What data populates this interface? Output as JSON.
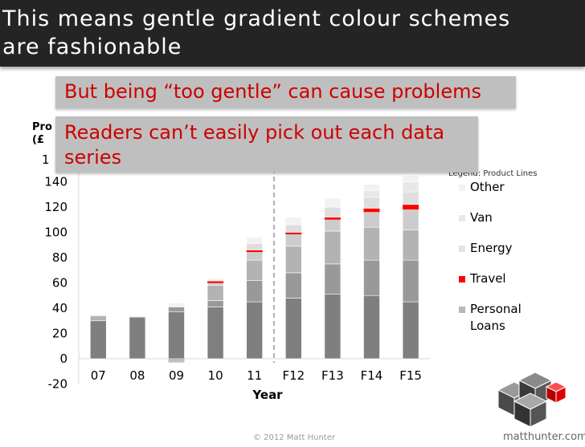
{
  "slide": {
    "title_line1": "This means gentle gradient colour schemes",
    "title_line2": "are fashionable",
    "callout1": "But being “too gentle” can cause problems",
    "callout2": "Readers can’t easily pick out each data series",
    "copyright": "© 2012 Matt Hunter",
    "brand": "matthunter.com"
  },
  "colors": {
    "title_bg": "#242424",
    "callout_bg": "#bfbfbf",
    "callout_text": "#cc0000"
  },
  "chart_data": {
    "type": "bar",
    "stacked": true,
    "categories": [
      "07",
      "08",
      "09",
      "10",
      "11",
      "F12",
      "F13",
      "F14",
      "F15"
    ],
    "xlabel": "Year",
    "ylabel_partial": [
      "Pro",
      "(£"
    ],
    "y_tick_visible_partial": "1",
    "ylim": [
      -20,
      160
    ],
    "yticks": [
      -20,
      0,
      20,
      40,
      60,
      80,
      100,
      120,
      140
    ],
    "forecast_divider_after": "11",
    "legend_title": "Legend: Product Lines",
    "legend_position": "right",
    "series": [
      {
        "name": "Personal Loans",
        "color": "#7f7f7f",
        "values": [
          30,
          33,
          37,
          41,
          45,
          48,
          51,
          50,
          45
        ]
      },
      {
        "name": "",
        "color": "#999999",
        "values": [
          0,
          0,
          4,
          5,
          17,
          20,
          24,
          28,
          33
        ]
      },
      {
        "name": "",
        "color": "#b3b3b3",
        "values": [
          4,
          0,
          0,
          12,
          16,
          21,
          26,
          26,
          24
        ]
      },
      {
        "name": "",
        "color": "#cccccc",
        "values": [
          0,
          0,
          0,
          3,
          7,
          10,
          9,
          12,
          16
        ]
      },
      {
        "name": "Travel",
        "color": "#ff0000",
        "values": [
          0,
          0,
          0,
          0.5,
          1,
          1,
          2,
          3,
          4
        ]
      },
      {
        "name": "Energy",
        "color": "#dedede",
        "values": [
          0,
          0,
          0,
          0,
          5,
          6,
          8,
          9,
          10
        ]
      },
      {
        "name": "Van",
        "color": "#e8e8e8",
        "values": [
          0,
          0,
          0,
          0,
          0,
          0,
          0,
          5,
          8
        ]
      },
      {
        "name": "Other",
        "color": "#f2f2f2",
        "values": [
          1,
          1,
          3,
          2,
          5,
          6,
          7,
          5,
          5
        ]
      }
    ],
    "negative_values": [
      0,
      0,
      -3,
      0,
      0,
      0,
      0,
      0,
      0
    ],
    "legend": [
      {
        "label": "Other",
        "color": "#f2f2f2"
      },
      {
        "label": "Van",
        "color": "#e8e8e8"
      },
      {
        "label": "Energy",
        "color": "#e3e3e3"
      },
      {
        "label": "Travel",
        "color": "#ff0000"
      },
      {
        "label": "Personal Loans",
        "color": "#b8b8b8"
      }
    ]
  }
}
